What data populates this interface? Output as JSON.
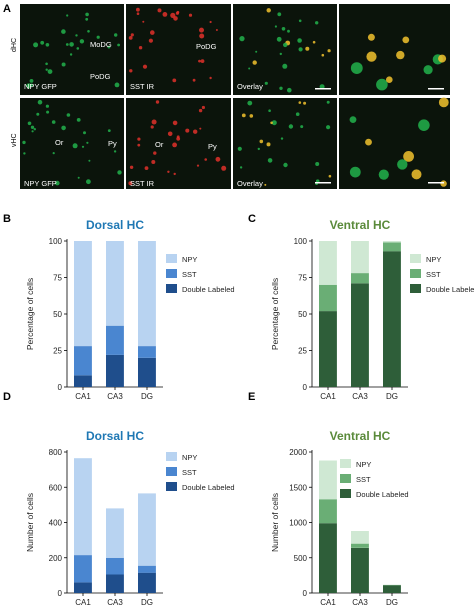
{
  "panel_letters": {
    "a": "A",
    "b": "B",
    "c": "C",
    "d": "D",
    "e": "E"
  },
  "micrograph": {
    "row_labels": [
      "dHC",
      "vHC"
    ],
    "dHC": [
      "NPY GFP",
      "SST IR",
      "Overlay",
      ""
    ],
    "vHC": [
      "NPY GFP",
      "SST IR",
      "Overlay",
      ""
    ],
    "region_labels": {
      "modg": "MoDG",
      "podg_green": "PoDG",
      "podg_red": "PoDG",
      "or_green": "Or",
      "py_green": "Py",
      "or_red": "Or",
      "py_red": "Py"
    },
    "colors": {
      "green": "#22b14c",
      "red": "#e0302a",
      "yellow": "#f2c22e",
      "background": "#0b140b"
    }
  },
  "chart_data": [
    {
      "panel": "B",
      "type": "bar",
      "stacked": true,
      "title": "Dorsal HC",
      "title_color": "#1f78b4",
      "categories": [
        "CA1",
        "CA3",
        "DG"
      ],
      "ylabel": "Percentage of cells",
      "xlabel": "",
      "ylim": [
        0,
        100
      ],
      "yticks": [
        0,
        25,
        50,
        75,
        100
      ],
      "legend_position": "right",
      "series": [
        {
          "name": "Double Labeled",
          "color": "#1f4e8c",
          "values": [
            8,
            22,
            20
          ]
        },
        {
          "name": "SST",
          "color": "#4a86d0",
          "values": [
            20,
            20,
            8
          ]
        },
        {
          "name": "NPY",
          "color": "#b8d3f1",
          "values": [
            72,
            58,
            72
          ]
        }
      ]
    },
    {
      "panel": "C",
      "type": "bar",
      "stacked": true,
      "title": "Ventral HC",
      "title_color": "#5a8a3a",
      "categories": [
        "CA1",
        "CA3",
        "DG"
      ],
      "ylabel": "Percentage of cells",
      "xlabel": "",
      "ylim": [
        0,
        100
      ],
      "yticks": [
        0,
        25,
        50,
        75,
        100
      ],
      "legend_position": "right",
      "series": [
        {
          "name": "Double Labeled",
          "color": "#2e5e39",
          "values": [
            52,
            71,
            93
          ]
        },
        {
          "name": "SST",
          "color": "#6aae75",
          "values": [
            18,
            7,
            6
          ]
        },
        {
          "name": "NPY",
          "color": "#cfe8d3",
          "values": [
            30,
            22,
            1
          ]
        }
      ]
    },
    {
      "panel": "D",
      "type": "bar",
      "stacked": true,
      "title": "Dorsal HC",
      "title_color": "#1f78b4",
      "categories": [
        "CA1",
        "CA3",
        "DG"
      ],
      "ylabel": "Number of cells",
      "xlabel": "",
      "ylim": [
        0,
        800
      ],
      "yticks": [
        0,
        200,
        400,
        600,
        800
      ],
      "legend_position": "right",
      "series": [
        {
          "name": "Double Labeled",
          "color": "#1f4e8c",
          "values": [
            60,
            105,
            115
          ]
        },
        {
          "name": "SST",
          "color": "#4a86d0",
          "values": [
            155,
            95,
            40
          ]
        },
        {
          "name": "NPY",
          "color": "#b8d3f1",
          "values": [
            550,
            280,
            410
          ]
        }
      ]
    },
    {
      "panel": "E",
      "type": "bar",
      "stacked": true,
      "title": "Ventral HC",
      "title_color": "#5a8a3a",
      "categories": [
        "CA1",
        "CA3",
        "DG"
      ],
      "ylabel": "Number of cells",
      "xlabel": "",
      "ylim": [
        0,
        2000
      ],
      "yticks": [
        0,
        500,
        1000,
        1500,
        2000
      ],
      "legend_position": "right",
      "series": [
        {
          "name": "Double Labeled",
          "color": "#2e5e39",
          "values": [
            990,
            640,
            110
          ]
        },
        {
          "name": "SST",
          "color": "#6aae75",
          "values": [
            340,
            60,
            5
          ]
        },
        {
          "name": "NPY",
          "color": "#cfe8d3",
          "values": [
            550,
            180,
            0
          ]
        }
      ]
    }
  ]
}
